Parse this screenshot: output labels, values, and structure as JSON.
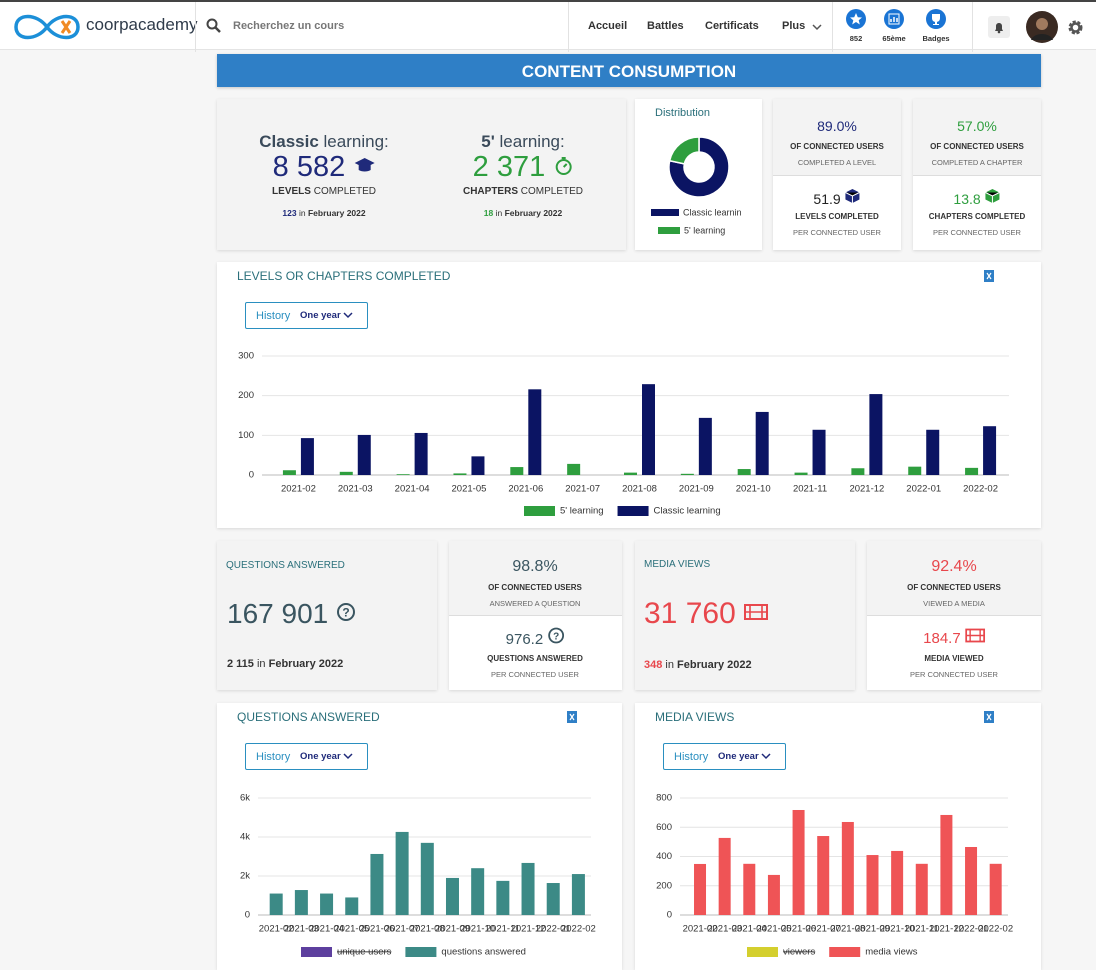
{
  "header": {
    "logo": "coorpacademy",
    "search": "Recherchez un cours",
    "nav": [
      "Accueil",
      "Battles",
      "Certificats",
      "Plus"
    ],
    "badges": [
      "852",
      "65ème",
      "Badges"
    ]
  },
  "page_title": "CONTENT CONSUMPTION",
  "learning": {
    "classic": {
      "name_bold": "Classic",
      "name_rest": "learning:",
      "total": "8 582",
      "unit_bold": "LEVELS",
      "unit_rest": "COMPLETED",
      "month_count": "123",
      "month_in": "in",
      "month": "February 2022"
    },
    "five": {
      "name_bold": "5'",
      "name_rest": "learning:",
      "total": "2 371",
      "unit_bold": "CHAPTERS",
      "unit_rest": "COMPLETED",
      "month_count": "18",
      "month_in": "in",
      "month": "February 2022"
    }
  },
  "rates": [
    {
      "pct": "89.0%",
      "line1": "OF CONNECTED USERS",
      "line2": "COMPLETED A LEVEL",
      "avg": "51.9",
      "line3": "LEVELS COMPLETED",
      "line4": "PER CONNECTED USER"
    },
    {
      "pct": "57.0%",
      "line1": "OF CONNECTED USERS",
      "line2": "COMPLETED A CHAPTER",
      "avg": "13.8",
      "line3": "CHAPTERS COMPLETED",
      "line4": "PER CONNECTED USER"
    }
  ],
  "questions": {
    "title": "QUESTIONS ANSWERED",
    "total": "167 901",
    "month_count": "2 115",
    "month_in": "in",
    "month": "February 2022",
    "pct": "98.8%",
    "line1": "OF CONNECTED USERS",
    "line2": "ANSWERED A QUESTION",
    "avg": "976.2",
    "line3": "QUESTIONS ANSWERED",
    "line4": "PER CONNECTED USER"
  },
  "media": {
    "title": "MEDIA VIEWS",
    "total": "31 760",
    "month_count": "348",
    "month_in": "in",
    "month": "February 2022",
    "pct": "92.4%",
    "line1": "OF CONNECTED USERS",
    "line2": "VIEWED A MEDIA",
    "avg": "184.7",
    "line3": "MEDIA VIEWED",
    "line4": "PER CONNECTED USER"
  },
  "chart_data": [
    {
      "type": "pie",
      "title": "Distribution",
      "donut": true,
      "categories": [
        "Classic learnin",
        "5' learning"
      ],
      "values": [
        8582,
        2371
      ],
      "colors": [
        "#0b1463",
        "#2e9e3e"
      ]
    },
    {
      "type": "bar",
      "title": "LEVELS OR CHAPTERS COMPLETED",
      "filter": {
        "label": "History",
        "value": "One year"
      },
      "categories": [
        "2021-02",
        "2021-03",
        "2021-04",
        "2021-05",
        "2021-06",
        "2021-07",
        "2021-08",
        "2021-09",
        "2021-10",
        "2021-11",
        "2021-12",
        "2022-01",
        "2022-02"
      ],
      "series": [
        {
          "name": "5' learning",
          "color": "#2e9e3e",
          "values": [
            12,
            8,
            2,
            4,
            20,
            28,
            6,
            3,
            15,
            6,
            17,
            21,
            18
          ]
        },
        {
          "name": "Classic learning",
          "color": "#0b1463",
          "values": [
            93,
            101,
            106,
            47,
            216,
            0,
            229,
            144,
            159,
            114,
            204,
            114,
            123
          ]
        }
      ],
      "ylim": [
        0,
        300
      ],
      "yticks": [
        0,
        100,
        200,
        300
      ],
      "grid": true
    },
    {
      "type": "bar",
      "title": "QUESTIONS ANSWERED",
      "filter": {
        "label": "History",
        "value": "One year"
      },
      "categories": [
        "2021-02",
        "2021-03",
        "2021-04",
        "2021-05",
        "2021-06",
        "2021-07",
        "2021-08",
        "2021-09",
        "2021-10",
        "2021-11",
        "2021-12",
        "2022-01",
        "2022-02"
      ],
      "series": [
        {
          "name": "unique users",
          "color": "#5d3f9e",
          "hidden": true,
          "values": [
            null,
            null,
            null,
            null,
            null,
            null,
            null,
            null,
            null,
            null,
            null,
            null,
            null
          ]
        },
        {
          "name": "questions answered",
          "color": "#3c8a86",
          "values": [
            1100,
            1280,
            1100,
            900,
            3130,
            4260,
            3700,
            1900,
            2400,
            1750,
            2670,
            1640,
            2100
          ]
        }
      ],
      "ylim": [
        0,
        6000
      ],
      "yticks": [
        0,
        {
          "value": 2000,
          "label": "2k"
        },
        {
          "value": 4000,
          "label": "4k"
        },
        {
          "value": 6000,
          "label": "6k"
        }
      ],
      "grid": true
    },
    {
      "type": "bar",
      "title": "MEDIA VIEWS",
      "filter": {
        "label": "History",
        "value": "One year"
      },
      "categories": [
        "2021-02",
        "2021-03",
        "2021-04",
        "2021-05",
        "2021-06",
        "2021-07",
        "2021-08",
        "2021-09",
        "2021-10",
        "2021-11",
        "2021-12",
        "2022-01",
        "2022-02"
      ],
      "series": [
        {
          "name": "viewers",
          "color": "#d4cf2e",
          "hidden": true,
          "values": [
            null,
            null,
            null,
            null,
            null,
            null,
            null,
            null,
            null,
            null,
            null,
            null,
            null
          ]
        },
        {
          "name": "media views",
          "color": "#ef5456",
          "values": [
            349,
            527,
            350,
            274,
            718,
            540,
            636,
            410,
            438,
            350,
            684,
            465,
            350
          ]
        }
      ],
      "ylim": [
        0,
        800
      ],
      "yticks": [
        0,
        200,
        400,
        600,
        800
      ],
      "grid": true
    }
  ]
}
